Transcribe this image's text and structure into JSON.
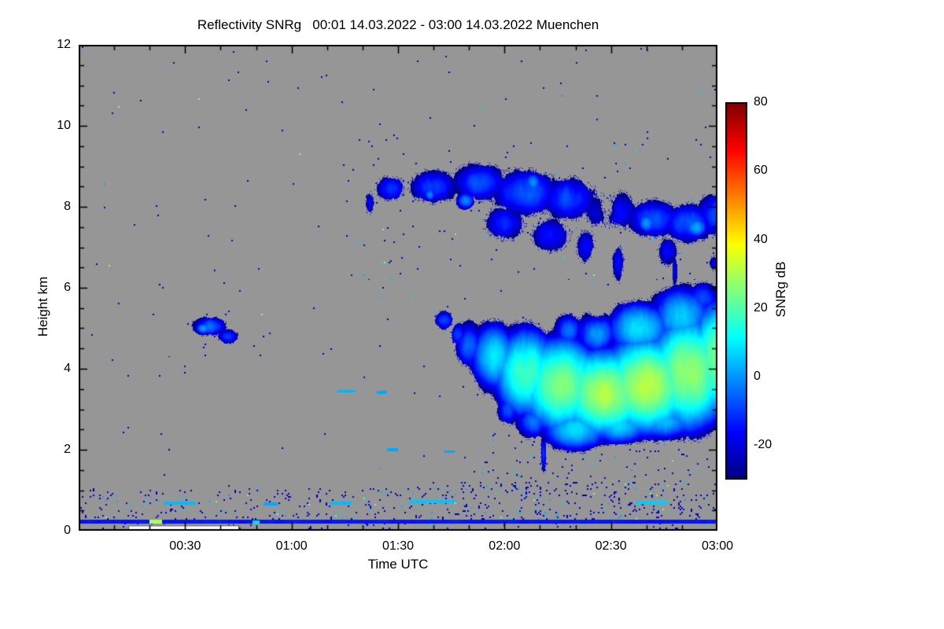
{
  "chart_data": {
    "type": "heatmap",
    "title": "Reflectivity SNRg   00:01 14.03.2022 - 03:00 14.03.2022 Muenchen",
    "xlabel": "Time UTC",
    "ylabel": "Height km",
    "colorbar_label": "SNRg dB",
    "colormap": "jet",
    "background_color": "#969696",
    "x_start_minutes": 0,
    "x_end_minutes": 180,
    "x_minor_step_minutes": 10,
    "x_ticks": [
      {
        "minutes": 30,
        "label": "00:30"
      },
      {
        "minutes": 60,
        "label": "01:00"
      },
      {
        "minutes": 90,
        "label": "01:30"
      },
      {
        "minutes": 120,
        "label": "02:00"
      },
      {
        "minutes": 150,
        "label": "02:30"
      },
      {
        "minutes": 180,
        "label": "03:00"
      }
    ],
    "y_range": [
      0,
      12
    ],
    "y_ticks": [
      0,
      2,
      4,
      6,
      8,
      10,
      12
    ],
    "y_minor_step": 0.5,
    "value_range": [
      -30,
      80
    ],
    "colorbar_ticks": [
      80,
      60,
      40,
      20,
      0,
      -20
    ],
    "cloud_blobs": [
      {
        "t": 82,
        "h": 8.1,
        "st": 2,
        "sh": 0.5,
        "peak": -18
      },
      {
        "t": 88,
        "h": 8.45,
        "st": 6,
        "sh": 0.45,
        "peak": -12
      },
      {
        "t": 100,
        "h": 8.5,
        "st": 9,
        "sh": 0.55,
        "peak": -10
      },
      {
        "t": 99,
        "h": 8.3,
        "st": 2,
        "sh": 0.2,
        "peak": -2
      },
      {
        "t": 109,
        "h": 8.15,
        "st": 3,
        "sh": 0.25,
        "peak": 0
      },
      {
        "t": 113,
        "h": 8.6,
        "st": 10,
        "sh": 0.6,
        "peak": -8
      },
      {
        "t": 126,
        "h": 8.35,
        "st": 12,
        "sh": 0.75,
        "peak": -7
      },
      {
        "t": 128,
        "h": 8.6,
        "st": 3,
        "sh": 0.3,
        "peak": -2
      },
      {
        "t": 138,
        "h": 8.2,
        "st": 10,
        "sh": 0.7,
        "peak": -9
      },
      {
        "t": 150,
        "h": 7.9,
        "st": 10,
        "sh": 0.65,
        "peak": -10
      },
      {
        "t": 162,
        "h": 7.7,
        "st": 10,
        "sh": 0.6,
        "peak": -8
      },
      {
        "t": 160,
        "h": 7.6,
        "st": 3,
        "sh": 0.3,
        "peak": 0
      },
      {
        "t": 172,
        "h": 7.6,
        "st": 9,
        "sh": 0.6,
        "peak": -6
      },
      {
        "t": 174,
        "h": 7.5,
        "st": 4,
        "sh": 0.3,
        "peak": 2
      },
      {
        "t": 180,
        "h": 7.8,
        "st": 8,
        "sh": 0.7,
        "peak": -8
      },
      {
        "t": 120,
        "h": 7.6,
        "st": 8,
        "sh": 0.6,
        "peak": -13
      },
      {
        "t": 133,
        "h": 7.3,
        "st": 8,
        "sh": 0.6,
        "peak": -14
      },
      {
        "t": 143,
        "h": 7.0,
        "st": 4,
        "sh": 0.6,
        "peak": -14
      },
      {
        "t": 152,
        "h": 6.6,
        "st": 2.5,
        "sh": 0.7,
        "peak": -15
      },
      {
        "t": 166,
        "h": 6.9,
        "st": 4,
        "sh": 0.5,
        "peak": -15
      },
      {
        "t": 168,
        "h": 6.4,
        "st": 1,
        "sh": 0.5,
        "peak": -14
      },
      {
        "t": 179,
        "h": 6.6,
        "st": 2,
        "sh": 0.3,
        "peak": -18
      },
      {
        "t": 37,
        "h": 5.05,
        "st": 6,
        "sh": 0.3,
        "peak": -6
      },
      {
        "t": 35,
        "h": 5.0,
        "st": 2.5,
        "sh": 0.18,
        "peak": 2
      },
      {
        "t": 42,
        "h": 4.8,
        "st": 4,
        "sh": 0.25,
        "peak": -10
      },
      {
        "t": 103,
        "h": 5.2,
        "st": 3.5,
        "sh": 0.3,
        "peak": -8
      },
      {
        "t": 107,
        "h": 4.85,
        "st": 3,
        "sh": 0.4,
        "peak": -10
      },
      {
        "t": 110,
        "h": 4.6,
        "st": 5,
        "sh": 0.7,
        "peak": -5
      },
      {
        "t": 117,
        "h": 4.3,
        "st": 7,
        "sh": 0.9,
        "peak": 8
      },
      {
        "t": 126,
        "h": 3.9,
        "st": 9,
        "sh": 1.1,
        "peak": 18
      },
      {
        "t": 136,
        "h": 3.6,
        "st": 11,
        "sh": 1.1,
        "peak": 26
      },
      {
        "t": 148,
        "h": 3.4,
        "st": 12,
        "sh": 1.0,
        "peak": 30
      },
      {
        "t": 160,
        "h": 3.6,
        "st": 13,
        "sh": 1.1,
        "peak": 30
      },
      {
        "t": 172,
        "h": 3.9,
        "st": 11,
        "sh": 1.3,
        "peak": 28
      },
      {
        "t": 180,
        "h": 4.2,
        "st": 8,
        "sh": 1.4,
        "peak": 24
      },
      {
        "t": 146,
        "h": 4.9,
        "st": 6,
        "sh": 0.6,
        "peak": 4
      },
      {
        "t": 138,
        "h": 4.95,
        "st": 5,
        "sh": 0.5,
        "peak": -5
      },
      {
        "t": 158,
        "h": 5.0,
        "st": 10,
        "sh": 0.7,
        "peak": 8
      },
      {
        "t": 170,
        "h": 5.3,
        "st": 9,
        "sh": 0.8,
        "peak": 6
      },
      {
        "t": 167,
        "h": 5.6,
        "st": 8,
        "sh": 0.5,
        "peak": -10
      },
      {
        "t": 176,
        "h": 5.75,
        "st": 6,
        "sh": 0.5,
        "peak": -8
      },
      {
        "t": 140,
        "h": 2.5,
        "st": 10,
        "sh": 0.55,
        "peak": 8
      },
      {
        "t": 152,
        "h": 2.6,
        "st": 10,
        "sh": 0.5,
        "peak": 6
      },
      {
        "t": 165,
        "h": 2.7,
        "st": 10,
        "sh": 0.5,
        "peak": 4
      },
      {
        "t": 128,
        "h": 2.7,
        "st": 6,
        "sh": 0.5,
        "peak": -4
      },
      {
        "t": 121,
        "h": 3.0,
        "st": 4,
        "sh": 0.5,
        "peak": -8
      },
      {
        "t": 131,
        "h": 1.9,
        "st": 1.2,
        "sh": 0.7,
        "peak": -12
      },
      {
        "t": 138,
        "h": 2.15,
        "st": 1,
        "sh": 0.4,
        "peak": -14
      }
    ],
    "holes": [
      {
        "t": 149,
        "h": 8.0,
        "st": 2.5,
        "sh": 0.45,
        "amp": 22
      },
      {
        "t": 146,
        "h": 5.9,
        "st": 3,
        "sh": 0.8,
        "amp": 26
      }
    ],
    "lines": [
      {
        "t0": 0,
        "t1": 180,
        "h0": 0.18,
        "h1": 0.27,
        "v": -14
      }
    ],
    "segments": [
      {
        "t0": 20,
        "t1": 23.5,
        "h": 0.22,
        "v": 30,
        "half": 0.05
      },
      {
        "t0": 49,
        "t1": 51,
        "h": 0.22,
        "v": 8,
        "half": 0.04
      },
      {
        "t0": 24,
        "t1": 33,
        "h": 0.68,
        "v": 4,
        "half": 0.04
      },
      {
        "t0": 52,
        "t1": 56,
        "h": 0.66,
        "v": 2,
        "half": 0.035
      },
      {
        "t0": 71,
        "t1": 77,
        "h": 0.68,
        "v": 4,
        "half": 0.04
      },
      {
        "t0": 93,
        "t1": 106,
        "h": 0.72,
        "v": 5,
        "half": 0.04
      },
      {
        "t0": 157,
        "t1": 166,
        "h": 0.7,
        "v": 6,
        "half": 0.04
      },
      {
        "t0": 73,
        "t1": 78,
        "h": 3.45,
        "v": 3,
        "half": 0.035
      },
      {
        "t0": 84,
        "t1": 87,
        "h": 3.42,
        "v": 2,
        "half": 0.035
      },
      {
        "t0": 87,
        "t1": 90,
        "h": 2.0,
        "v": 2,
        "half": 0.035
      },
      {
        "t0": 103,
        "t1": 106,
        "h": 1.95,
        "v": 2,
        "half": 0.035
      }
    ],
    "speckle": {
      "base": 0.0015,
      "bands": [
        {
          "t0": 0,
          "t1": 180,
          "h0": 0,
          "h1": 0.18,
          "p": 0.03
        },
        {
          "t0": 0,
          "t1": 180,
          "h0": 0.28,
          "h1": 1.05,
          "p": 0.045
        },
        {
          "t0": 95,
          "t1": 180,
          "h0": 0.28,
          "h1": 1.2,
          "p": 0.07
        },
        {
          "t0": 108,
          "t1": 180,
          "h0": 1.2,
          "h1": 2.4,
          "p": 0.02
        },
        {
          "t0": 75,
          "t1": 180,
          "h0": 6.2,
          "h1": 9.7,
          "p": 0.006
        },
        {
          "t0": 25,
          "t1": 55,
          "h0": 4.3,
          "h1": 5.5,
          "p": 0.008
        }
      ]
    },
    "gap_box": {
      "t0": 14,
      "t1": 45,
      "h0": 0.0,
      "h1": 0.13
    }
  }
}
